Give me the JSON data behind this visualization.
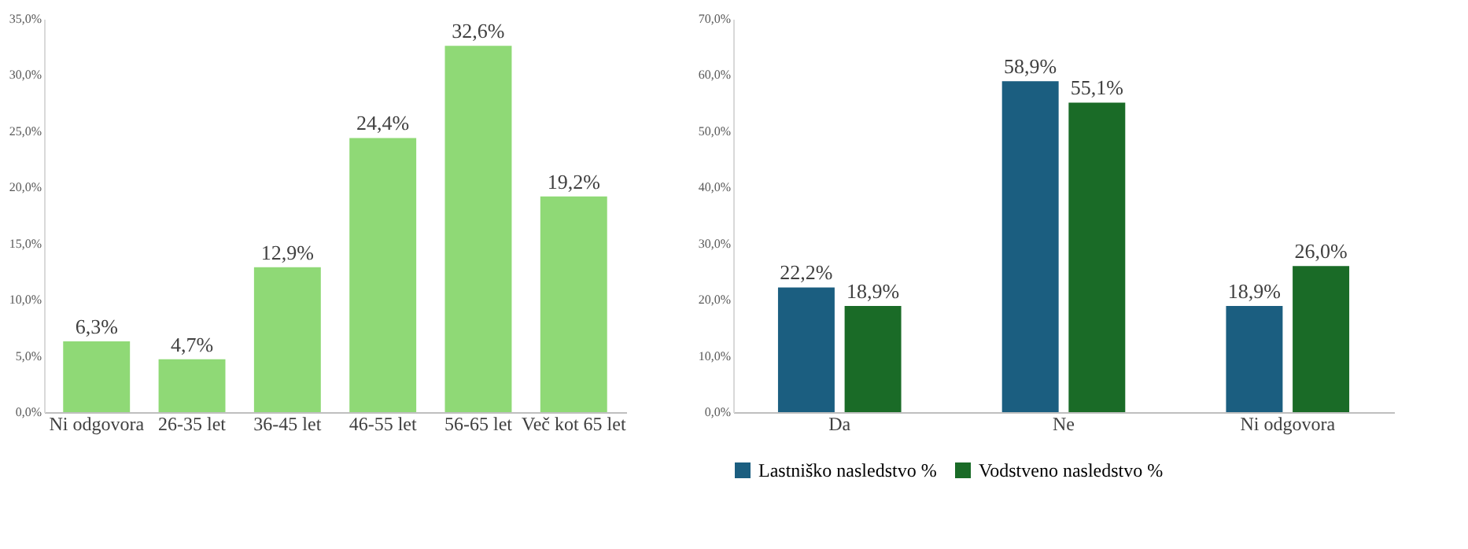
{
  "chart_data": [
    {
      "type": "bar",
      "categories": [
        "Ni odgovora",
        "26-35 let",
        "36-45 let",
        "46-55 let",
        "56-65 let",
        "Več kot 65 let"
      ],
      "series": [
        {
          "color": "#8fd976",
          "values": [
            6.3,
            4.7,
            12.9,
            24.4,
            32.6,
            19.2
          ],
          "value_labels": [
            "6,3%",
            "4,7%",
            "12,9%",
            "24,4%",
            "32,6%",
            "19,2%"
          ]
        }
      ],
      "ylim": [
        0,
        35
      ],
      "yticks": [
        {
          "value": 0,
          "label": "0,0%"
        },
        {
          "value": 5,
          "label": "5,0%"
        },
        {
          "value": 10,
          "label": "10,0%"
        },
        {
          "value": 15,
          "label": "15,0%"
        },
        {
          "value": 20,
          "label": "20,0%"
        },
        {
          "value": 25,
          "label": "25,0%"
        },
        {
          "value": 30,
          "label": "30,0%"
        },
        {
          "value": 35,
          "label": "35,0%"
        }
      ],
      "grid": false,
      "legend": false
    },
    {
      "type": "bar",
      "categories": [
        "Da",
        "Ne",
        "Ni odgovora"
      ],
      "series": [
        {
          "name": "Lastniško nasledstvo %",
          "color": "#1b5e80",
          "values": [
            22.2,
            58.9,
            18.9
          ],
          "value_labels": [
            "22,2%",
            "58,9%",
            "18,9%"
          ]
        },
        {
          "name": "Vodstveno nasledstvo %",
          "color": "#1a6b27",
          "values": [
            18.9,
            55.1,
            26.0
          ],
          "value_labels": [
            "18,9%",
            "55,1%",
            "26,0%"
          ]
        }
      ],
      "ylim": [
        0,
        70
      ],
      "yticks": [
        {
          "value": 0,
          "label": "0,0%"
        },
        {
          "value": 10,
          "label": "10,0%"
        },
        {
          "value": 20,
          "label": "20,0%"
        },
        {
          "value": 30,
          "label": "30,0%"
        },
        {
          "value": 40,
          "label": "40,0%"
        },
        {
          "value": 50,
          "label": "50,0%"
        },
        {
          "value": 60,
          "label": "60,0%"
        },
        {
          "value": 70,
          "label": "70,0%"
        }
      ],
      "grid": false,
      "legend": "bottom"
    }
  ]
}
